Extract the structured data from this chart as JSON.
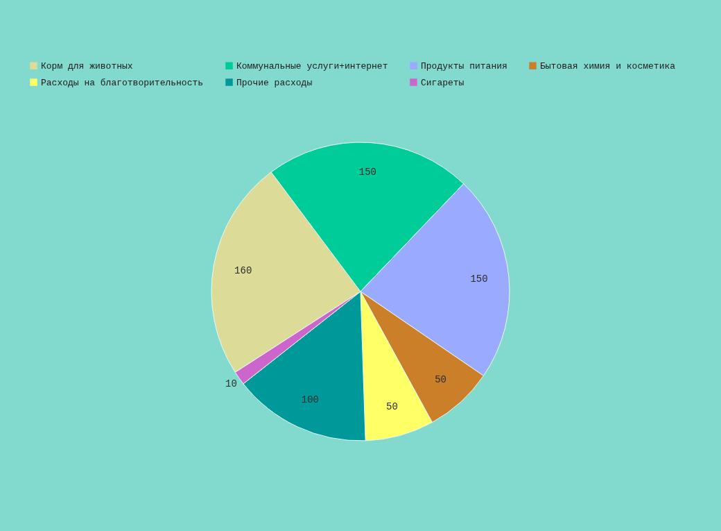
{
  "chart_data": {
    "type": "pie",
    "categories": [
      "Корм для животных",
      "Коммунальные услуги+интернет",
      "Продукты питания",
      "Бытовая химия и косметика",
      "Расходы на благотворительность",
      "Прочие расходы",
      "Сигареты"
    ],
    "values": [
      160,
      150,
      150,
      50,
      50,
      100,
      10
    ],
    "colors": [
      "#dcdb98",
      "#00cc99",
      "#99aaff",
      "#cc7f29",
      "#ffff66",
      "#009999",
      "#cc66cc"
    ],
    "data_labels": true,
    "legend": "top left"
  }
}
